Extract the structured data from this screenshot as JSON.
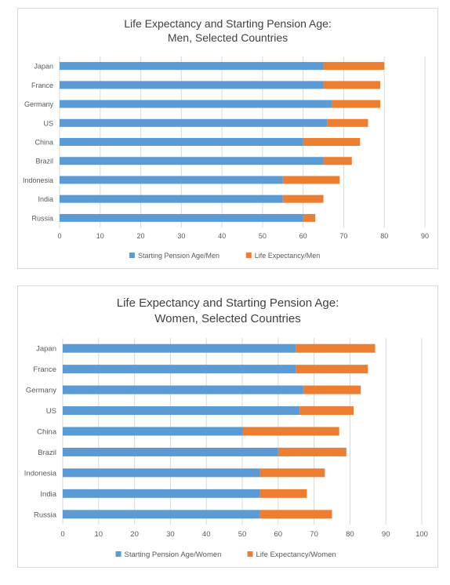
{
  "chart_data": [
    {
      "type": "bar",
      "orientation": "horizontal",
      "stacked": true,
      "title_lines": [
        "Life Expectancy and Starting Pension Age:",
        "Men, Selected Countries"
      ],
      "categories": [
        "Japan",
        "France",
        "Germany",
        "US",
        "China",
        "Brazil",
        "Indonesia",
        "India",
        "Russia"
      ],
      "series": [
        {
          "name": "Starting Pension Age/Men",
          "color": "#5b9bd5",
          "values": [
            65,
            65,
            67,
            66,
            60,
            65,
            55,
            55,
            60
          ]
        },
        {
          "name": "Life Expectancy/Men",
          "color": "#ed7d31",
          "values": [
            15,
            14,
            12,
            10,
            14,
            7,
            14,
            10,
            3
          ]
        }
      ],
      "xlim": [
        0,
        90
      ],
      "xticks": [
        0,
        10,
        20,
        30,
        40,
        50,
        60,
        70,
        80,
        90
      ],
      "grid": "vertical",
      "legend": "bottom"
    },
    {
      "type": "bar",
      "orientation": "horizontal",
      "stacked": true,
      "title_lines": [
        "Life Expectancy and Starting Pension Age:",
        "Women, Selected Countries"
      ],
      "categories": [
        "Japan",
        "France",
        "Germany",
        "US",
        "China",
        "Brazil",
        "Indonesia",
        "India",
        "Russia"
      ],
      "series": [
        {
          "name": "Starting Pension Age/Women",
          "color": "#5b9bd5",
          "values": [
            65,
            65,
            67,
            66,
            50,
            60,
            55,
            55,
            55
          ]
        },
        {
          "name": "Life Expectancy/Women",
          "color": "#ed7d31",
          "values": [
            22,
            20,
            16,
            15,
            27,
            19,
            18,
            13,
            20
          ]
        }
      ],
      "xlim": [
        0,
        100
      ],
      "xticks": [
        0,
        10,
        20,
        30,
        40,
        50,
        60,
        70,
        80,
        90,
        100
      ],
      "grid": "vertical",
      "legend": "bottom"
    }
  ]
}
